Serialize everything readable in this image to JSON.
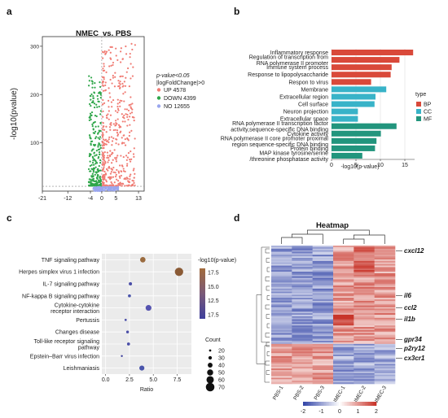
{
  "panel_labels": [
    "a",
    "b",
    "c",
    "d"
  ],
  "chart_data": [
    {
      "type": "scatter",
      "panel": "a",
      "title_part1": "NMEC",
      "title_part2": "vs. PBS",
      "xlabel": "",
      "ylabel": "-log10(pvalue)",
      "xticks": [
        -21,
        -12,
        -4,
        0,
        5,
        13
      ],
      "yticks": [
        100,
        200,
        300
      ],
      "xlim": [
        -21,
        15
      ],
      "ylim": [
        0,
        320
      ],
      "legend_title": [
        "p-value<0.05",
        "|logFoldChange|>0"
      ],
      "series": [
        {
          "name": "UP 4578",
          "color": "#f07c74"
        },
        {
          "name": "DOWN 4399",
          "color": "#2fa64a"
        },
        {
          "name": "NO 12655",
          "color": "#9aa6ee"
        }
      ],
      "legend_position": "right"
    },
    {
      "type": "bar",
      "panel": "b",
      "orientation": "horizontal",
      "xlabel": "-log10(p-value)",
      "xticks": [
        0,
        5,
        10,
        15
      ],
      "xlim": [
        0,
        17
      ],
      "legend_title": "type",
      "series": [
        {
          "name": "BP",
          "color": "#d9493a"
        },
        {
          "name": "CC",
          "color": "#38b3c8"
        },
        {
          "name": "MF",
          "color": "#22957d"
        }
      ],
      "categories": [
        {
          "label": [
            "Inflammatory response"
          ],
          "value": 16.7,
          "type": "BP"
        },
        {
          "label": [
            "Regulation of transcription from",
            "RNA polymerase II promoter"
          ],
          "value": 13.9,
          "type": "BP"
        },
        {
          "label": [
            "Immune system process"
          ],
          "value": 12.3,
          "type": "BP"
        },
        {
          "label": [
            "Response to lipopolysaccharide"
          ],
          "value": 12.1,
          "type": "BP"
        },
        {
          "label": [
            "Respon to virus"
          ],
          "value": 8.1,
          "type": "BP"
        },
        {
          "label": [
            "Membrane"
          ],
          "value": 11.2,
          "type": "CC"
        },
        {
          "label": [
            "Extracellular region"
          ],
          "value": 9.0,
          "type": "CC"
        },
        {
          "label": [
            "Cell surface"
          ],
          "value": 8.8,
          "type": "CC"
        },
        {
          "label": [
            "Neuron projection"
          ],
          "value": 5.4,
          "type": "CC"
        },
        {
          "label": [
            "Extracellular space"
          ],
          "value": 5.4,
          "type": "CC"
        },
        {
          "label": [
            "RNA polymerase II transcription factor",
            "activity,sequence-specific DNA binding"
          ],
          "value": 13.3,
          "type": "MF"
        },
        {
          "label": [
            "Cytokine activity"
          ],
          "value": 10.1,
          "type": "MF"
        },
        {
          "label": [
            "RNA polymerase II core promoter proximal",
            "region sequence-specific DNA binding"
          ],
          "value": 9.2,
          "type": "MF"
        },
        {
          "label": [
            "Protein binding"
          ],
          "value": 8.9,
          "type": "MF"
        },
        {
          "label": [
            "MAP kinase tyrosine/serine",
            "/threonine phosphatase activity"
          ],
          "value": 6.3,
          "type": "MF"
        }
      ]
    },
    {
      "type": "scatter",
      "panel": "c",
      "xlabel": "Ratio",
      "xticks": [
        0.0,
        2.5,
        5.0,
        7.5
      ],
      "xlim": [
        -0.4,
        9.0
      ],
      "color_legend_title": "-log10(p-value)",
      "color_ticks": [
        17.5,
        15.0,
        12.5,
        17.5
      ],
      "size_legend_title": "Count",
      "size_legend": [
        20,
        30,
        40,
        50,
        60,
        70
      ],
      "categories": [
        {
          "label": [
            "TNF signaling pathway"
          ],
          "ratio": 3.9,
          "count": 45,
          "color": "#9a6b3f"
        },
        {
          "label": [
            "Herpes simplex virus 1 infection"
          ],
          "ratio": 7.7,
          "count": 68,
          "color": "#8a5a35"
        },
        {
          "label": [
            "IL-7 signaling pathway"
          ],
          "ratio": 2.6,
          "count": 28,
          "color": "#4b4fa8"
        },
        {
          "label": [
            "NF-kappa B signaling pathway"
          ],
          "ratio": 2.5,
          "count": 26,
          "color": "#4a55ab"
        },
        {
          "label": [
            "Cytokine-cytokine",
            "receptor interaction"
          ],
          "ratio": 4.5,
          "count": 48,
          "color": "#5553b0"
        },
        {
          "label": [
            "Pertussis"
          ],
          "ratio": 2.1,
          "count": 20,
          "color": "#4b4fa8"
        },
        {
          "label": [
            "Changes disease"
          ],
          "ratio": 2.3,
          "count": 24,
          "color": "#4b4fa8"
        },
        {
          "label": [
            "Toll-like receptor signaling",
            "pathway"
          ],
          "ratio": 2.4,
          "count": 26,
          "color": "#4b4fa8"
        },
        {
          "label": [
            "Epstein–Barr virus infection"
          ],
          "ratio": 1.7,
          "count": 18,
          "color": "#3d3f9c"
        },
        {
          "label": [
            "Leishmaniasis"
          ],
          "ratio": 3.8,
          "count": 42,
          "color": "#4a55ab"
        }
      ]
    },
    {
      "type": "heatmap",
      "panel": "d",
      "title": "Heatmap",
      "columns": [
        "PBS-1",
        "PBS-2",
        "PBS-3",
        "NMEC-1",
        "NMEC-2",
        "NMEC-3"
      ],
      "genes": [
        "cxcl12",
        "il6",
        "ccl2",
        "il1b",
        "gpr34",
        "p2ry12",
        "cx3cr1"
      ],
      "color_scale": {
        "ticks": [
          -2,
          -1,
          0,
          1,
          2
        ],
        "low": "#3547a8",
        "mid": "#ffffff",
        "high": "#c8352a"
      }
    }
  ]
}
